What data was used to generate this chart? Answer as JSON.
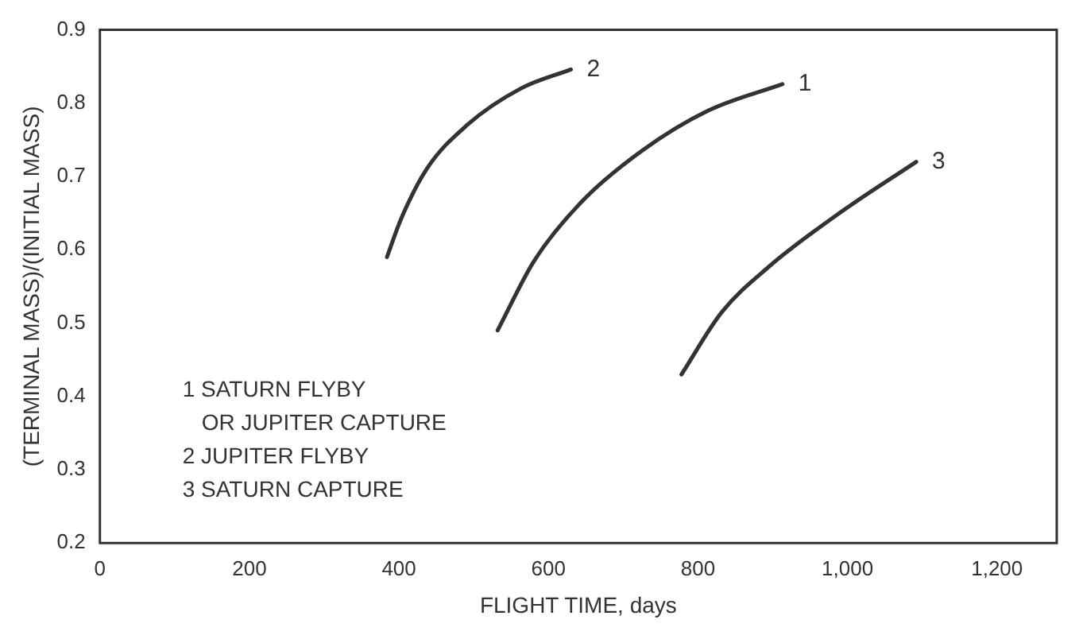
{
  "chart_data": {
    "type": "line",
    "xlabel": "FLIGHT TIME, days",
    "ylabel": "(TERMINAL MASS)/(INITIAL MASS)",
    "xlim": [
      0,
      1280
    ],
    "xticks": [
      0,
      200,
      400,
      600,
      800,
      {
        "value": 1000,
        "label": "1,000"
      },
      {
        "value": 1200,
        "label": "1,200"
      }
    ],
    "ylim": [
      0.2,
      0.9
    ],
    "yticks": [
      0.2,
      0.3,
      0.4,
      0.5,
      0.6,
      0.7,
      0.8,
      0.9
    ],
    "grid": false,
    "legend": false,
    "marker": "none",
    "line_style": "solid",
    "series": [
      {
        "name": "1",
        "color": "#333333",
        "x": [
          532,
          581,
          644,
          725,
          814,
          913
        ],
        "values": [
          0.49,
          0.585,
          0.665,
          0.735,
          0.79,
          0.826
        ]
      },
      {
        "name": "2",
        "color": "#333333",
        "x": [
          384,
          402,
          437,
          491,
          563,
          630
        ],
        "values": [
          0.59,
          0.64,
          0.71,
          0.77,
          0.82,
          0.846
        ]
      },
      {
        "name": "3",
        "color": "#333333",
        "x": [
          778,
          832,
          895,
          985,
          1092
        ],
        "values": [
          0.43,
          0.515,
          0.577,
          0.647,
          0.72
        ]
      }
    ],
    "annotations": [
      "1 SATURN FLYBY",
      "   OR JUPITER CAPTURE",
      "2 JUPITER FLYBY",
      "3 SATURN CAPTURE"
    ]
  }
}
